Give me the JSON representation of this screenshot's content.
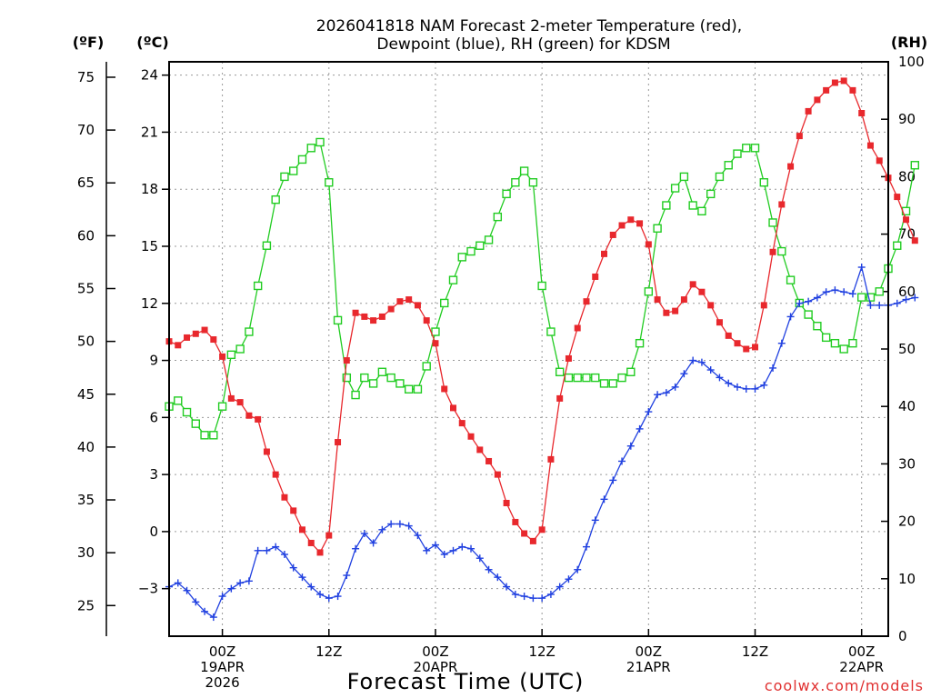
{
  "title_line1": "2026041818 NAM Forecast 2-meter Temperature (red),",
  "title_line2": "Dewpoint (blue), RH (green) for KDSM",
  "credit": "coolwx.com/models",
  "colors": {
    "temperature": "#e8282d",
    "dewpoint": "#2040e0",
    "rh": "#22cc22"
  },
  "chart_data": {
    "type": "line",
    "xlabel": "Forecast Time (UTC)",
    "x_unit": "hours from 2026-04-18 18Z",
    "x_range": [
      0,
      81
    ],
    "left_axis_f": {
      "label": "(ºF)",
      "ticks": [
        25,
        30,
        35,
        40,
        45,
        50,
        55,
        60,
        65,
        70,
        75
      ]
    },
    "left_axis_c": {
      "label": "(ºC)",
      "ticks": [
        "−3",
        "0",
        "3",
        "6",
        "9",
        "12",
        "15",
        "18",
        "21",
        "24"
      ],
      "ylim": [
        -5.5,
        24.7
      ]
    },
    "right_axis": {
      "label": "(RH)",
      "ticks": [
        0,
        10,
        20,
        30,
        40,
        50,
        60,
        70,
        80,
        90,
        100
      ],
      "ylim": [
        0,
        100
      ]
    },
    "x_ticks": [
      {
        "x": 6,
        "lines": [
          "00Z",
          "19APR",
          "2026"
        ]
      },
      {
        "x": 18,
        "lines": [
          "12Z"
        ]
      },
      {
        "x": 30,
        "lines": [
          "00Z",
          "20APR"
        ]
      },
      {
        "x": 42,
        "lines": [
          "12Z"
        ]
      },
      {
        "x": 54,
        "lines": [
          "00Z",
          "21APR"
        ]
      },
      {
        "x": 66,
        "lines": [
          "12Z"
        ]
      },
      {
        "x": 78,
        "lines": [
          "00Z",
          "22APR"
        ]
      }
    ],
    "series": [
      {
        "key": "temperature",
        "axis": "celsius",
        "marker": "filled-square",
        "values": [
          10.0,
          9.8,
          10.2,
          10.4,
          10.6,
          10.1,
          9.2,
          7.0,
          6.8,
          6.1,
          5.9,
          4.2,
          3.0,
          1.8,
          1.1,
          0.1,
          -0.6,
          -1.1,
          -0.2,
          4.7,
          9.0,
          11.5,
          11.3,
          11.1,
          11.3,
          11.7,
          12.1,
          12.2,
          11.9,
          11.1,
          9.9,
          7.5,
          6.5,
          5.7,
          5.0,
          4.3,
          3.7,
          3.0,
          1.5,
          0.5,
          -0.1,
          -0.5,
          0.1,
          3.8,
          7.0,
          9.1,
          10.7,
          12.1,
          13.4,
          14.6,
          15.6,
          16.1,
          16.4,
          16.2,
          15.1,
          12.2,
          11.5,
          11.6,
          12.2,
          13.0,
          12.6,
          11.9,
          11.0,
          10.3,
          9.9,
          9.6,
          9.7,
          11.9,
          14.7,
          17.2,
          19.2,
          20.8,
          22.1,
          22.7,
          23.2,
          23.6,
          23.7,
          23.2,
          22.0,
          20.3,
          19.5,
          18.6,
          17.6,
          16.4,
          15.3
        ]
      },
      {
        "key": "dewpoint",
        "axis": "celsius",
        "marker": "plus",
        "values": [
          -2.9,
          -2.7,
          -3.1,
          -3.7,
          -4.2,
          -4.5,
          -3.4,
          -3.0,
          -2.7,
          -2.6,
          -1.0,
          -1.0,
          -0.8,
          -1.2,
          -1.9,
          -2.4,
          -2.9,
          -3.3,
          -3.5,
          -3.4,
          -2.3,
          -0.9,
          -0.1,
          -0.6,
          0.1,
          0.4,
          0.4,
          0.3,
          -0.2,
          -1.0,
          -0.7,
          -1.2,
          -1.0,
          -0.8,
          -0.9,
          -1.4,
          -2.0,
          -2.4,
          -2.9,
          -3.3,
          -3.4,
          -3.5,
          -3.5,
          -3.3,
          -2.9,
          -2.5,
          -2.0,
          -0.8,
          0.6,
          1.7,
          2.7,
          3.7,
          4.5,
          5.4,
          6.3,
          7.2,
          7.3,
          7.6,
          8.3,
          9.0,
          8.9,
          8.5,
          8.1,
          7.8,
          7.6,
          7.5,
          7.5,
          7.7,
          8.6,
          9.9,
          11.3,
          12.0,
          12.1,
          12.3,
          12.6,
          12.7,
          12.6,
          12.5,
          13.9,
          11.9,
          11.9,
          11.9,
          12.0,
          12.2,
          12.3
        ]
      },
      {
        "key": "rh",
        "axis": "rh",
        "marker": "open-square",
        "values": [
          40,
          41,
          39,
          37,
          35,
          35,
          40,
          49,
          50,
          53,
          61,
          68,
          76,
          80,
          81,
          83,
          85,
          86,
          79,
          55,
          45,
          42,
          45,
          44,
          46,
          45,
          44,
          43,
          43,
          47,
          53,
          58,
          62,
          66,
          67,
          68,
          69,
          73,
          77,
          79,
          81,
          79,
          61,
          53,
          46,
          45,
          45,
          45,
          45,
          44,
          44,
          45,
          46,
          51,
          60,
          71,
          75,
          78,
          80,
          75,
          74,
          77,
          80,
          82,
          84,
          85,
          85,
          79,
          72,
          67,
          62,
          58,
          56,
          54,
          52,
          51,
          50,
          51,
          59,
          59,
          60,
          64,
          68,
          74,
          82
        ]
      }
    ]
  }
}
